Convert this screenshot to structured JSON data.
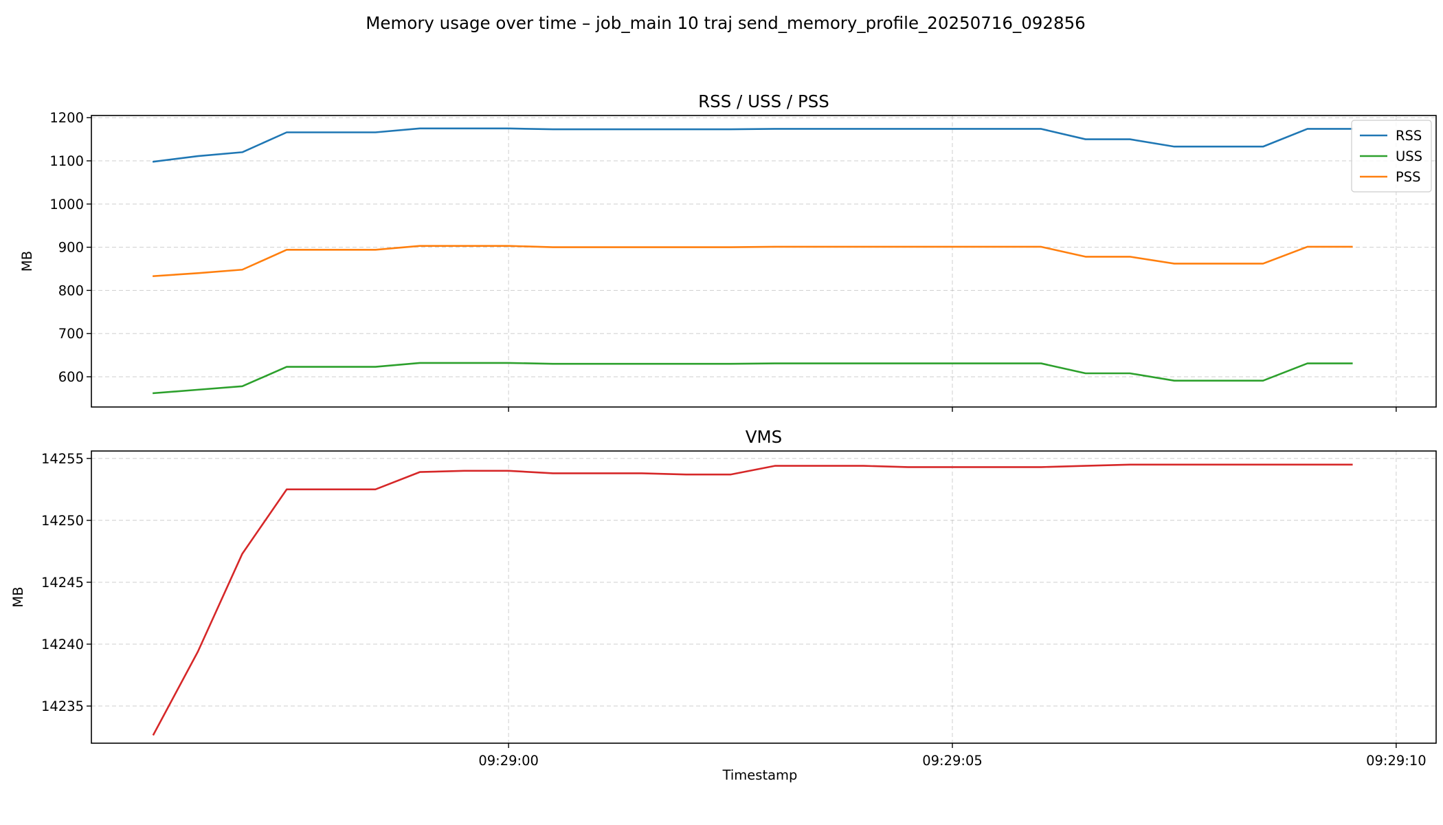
{
  "figure": {
    "suptitle": "Memory usage over time – job_main 10 traj send_memory_profile_20250716_092856",
    "xlabel": "Timestamp"
  },
  "chart_data": [
    {
      "type": "line",
      "title": "RSS / USS / PSS",
      "xlabel": "",
      "ylabel": "MB",
      "ylim": [
        530,
        1205
      ],
      "yticks": [
        600,
        700,
        800,
        900,
        1000,
        1100,
        1200
      ],
      "xlim": [
        "09:28:55.3",
        "09:29:10.45"
      ],
      "xticks": [
        "09:29:00",
        "09:29:05",
        "09:29:10"
      ],
      "show_xtick_labels": false,
      "grid": true,
      "legend": "top-right",
      "x": [
        "09:28:56.0",
        "09:28:56.5",
        "09:28:57.0",
        "09:28:57.5",
        "09:28:58.0",
        "09:28:58.5",
        "09:28:59.0",
        "09:28:59.5",
        "09:29:00.0",
        "09:29:00.5",
        "09:29:01.0",
        "09:29:01.5",
        "09:29:02.0",
        "09:29:02.5",
        "09:29:03.0",
        "09:29:03.5",
        "09:29:04.0",
        "09:29:04.5",
        "09:29:05.0",
        "09:29:05.5",
        "09:29:06.0",
        "09:29:06.5",
        "09:29:07.0",
        "09:29:07.5",
        "09:29:08.0",
        "09:29:08.5",
        "09:29:09.0",
        "09:29:09.5"
      ],
      "series": [
        {
          "name": "RSS",
          "color": "#1f77b4",
          "values": [
            1098,
            1111,
            1120,
            1166,
            1166,
            1166,
            1175,
            1175,
            1175,
            1173,
            1173,
            1173,
            1173,
            1173,
            1174,
            1174,
            1174,
            1174,
            1174,
            1174,
            1174,
            1150,
            1150,
            1133,
            1133,
            1133,
            1174,
            1174
          ]
        },
        {
          "name": "USS",
          "color": "#2ca02c",
          "values": [
            562,
            570,
            578,
            623,
            623,
            623,
            632,
            632,
            632,
            630,
            630,
            630,
            630,
            630,
            631,
            631,
            631,
            631,
            631,
            631,
            631,
            608,
            608,
            591,
            591,
            591,
            631,
            631
          ]
        },
        {
          "name": "PSS",
          "color": "#ff7f0e",
          "values": [
            833,
            840,
            848,
            894,
            894,
            894,
            903,
            903,
            903,
            900,
            900,
            900,
            900,
            900,
            901,
            901,
            901,
            901,
            901,
            901,
            901,
            878,
            878,
            862,
            862,
            862,
            901,
            901
          ]
        }
      ]
    },
    {
      "type": "line",
      "title": "VMS",
      "xlabel": "Timestamp",
      "ylabel": "MB",
      "ylim": [
        14232,
        14255.6
      ],
      "yticks": [
        14235,
        14240,
        14245,
        14250,
        14255
      ],
      "xlim": [
        "09:28:55.3",
        "09:29:10.45"
      ],
      "xticks": [
        "09:29:00",
        "09:29:05",
        "09:29:10"
      ],
      "show_xtick_labels": true,
      "grid": true,
      "x": [
        "09:28:56.0",
        "09:28:56.5",
        "09:28:57.0",
        "09:28:57.5",
        "09:28:58.0",
        "09:28:58.5",
        "09:28:59.0",
        "09:28:59.5",
        "09:29:00.0",
        "09:29:00.5",
        "09:29:01.0",
        "09:29:01.5",
        "09:29:02.0",
        "09:29:02.5",
        "09:29:03.0",
        "09:29:03.5",
        "09:29:04.0",
        "09:29:04.5",
        "09:29:05.0",
        "09:29:05.5",
        "09:29:06.0",
        "09:29:06.5",
        "09:29:07.0",
        "09:29:07.5",
        "09:29:08.0",
        "09:29:08.5",
        "09:29:09.0",
        "09:29:09.5"
      ],
      "series": [
        {
          "name": "",
          "color": "#d62728",
          "values": [
            14232.7,
            14239.4,
            14247.3,
            14252.5,
            14252.5,
            14252.5,
            14253.9,
            14254.0,
            14254.0,
            14253.8,
            14253.8,
            14253.8,
            14253.7,
            14253.7,
            14254.4,
            14254.4,
            14254.4,
            14254.3,
            14254.3,
            14254.3,
            14254.3,
            14254.4,
            14254.5,
            14254.5,
            14254.5,
            14254.5,
            14254.5,
            14254.5
          ]
        }
      ]
    }
  ]
}
